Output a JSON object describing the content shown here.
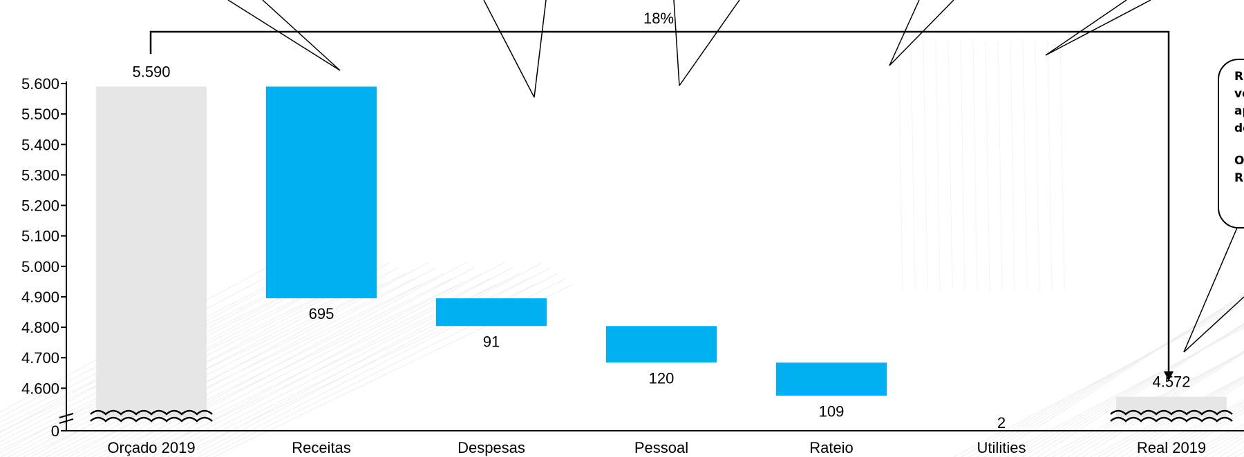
{
  "chart_data": {
    "type": "bar",
    "subtype": "waterfall",
    "categories": [
      "Orçado 2019",
      "Receitas",
      "Despesas",
      "Pessoal",
      "Rateio",
      "Utilities",
      "Real 2019"
    ],
    "series": [
      {
        "values": [
          5590,
          -695,
          -91,
          -120,
          -109,
          -2,
          4572
        ],
        "value_labels": [
          "5.590",
          "695",
          "91",
          "120",
          "109",
          "2",
          "4.572"
        ],
        "kinds": [
          "total",
          "delta",
          "delta",
          "delta",
          "delta",
          "delta",
          "total"
        ]
      }
    ],
    "y_ticks": [
      "0",
      "4.600",
      "4.700",
      "4.800",
      "4.900",
      "5.000",
      "5.100",
      "5.200",
      "5.300",
      "5.400",
      "5.500",
      "5.600"
    ],
    "ylim": [
      4560,
      5600
    ],
    "y_axis_break": true,
    "grid": false,
    "legend": "none",
    "annotations": [
      {
        "text": "18%",
        "type": "bracket",
        "from": "Orçado 2019",
        "to": "Real 2019"
      }
    ],
    "colors": {
      "total": "#e6e6e6",
      "delta": "#00b0f0",
      "axis": "#000000"
    }
  },
  "callout": {
    "lines": [
      "Res",
      "ver",
      "apr",
      "dez",
      "",
      "Orç",
      "Rea"
    ]
  }
}
